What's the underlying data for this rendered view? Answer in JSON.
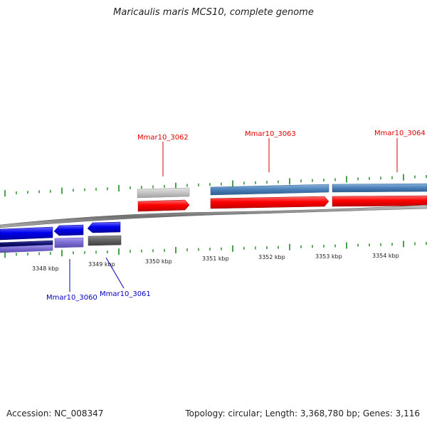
{
  "title": "Maricaulis maris MCS10, complete genome",
  "footer": {
    "accession": "Accession: NC_008347",
    "topology": "Topology: circular; Length: 3,368,780 bp; Genes: 3,116"
  },
  "scale_labels": [
    "3348 kbp",
    "3349 kbp",
    "3350 kbp",
    "3351 kbp",
    "3352 kbp",
    "3353 kbp",
    "3354 kbp"
  ],
  "forward_genes": [
    {
      "label": "Mmar10_3062",
      "color": "#e00000"
    },
    {
      "label": "Mmar10_3063",
      "color": "#e00000"
    },
    {
      "label": "Mmar10_3064",
      "color": "#e00000"
    }
  ],
  "reverse_genes": [
    {
      "label": "Mmar10_3060",
      "color": "#0000c0"
    },
    {
      "label": "Mmar10_3061",
      "color": "#0000c0"
    }
  ],
  "colors": {
    "forward_cds": "#ff0000",
    "reverse_cds": "#0000ee",
    "forward_gene_gray": "#c8c8c8",
    "forward_gene_steelblue": "#4a80b8",
    "reverse_gene_purple": "#7a6cd0",
    "reverse_gene_dark": "#606060",
    "backbone": "#888888",
    "tick_green": "#1a8a1a"
  }
}
